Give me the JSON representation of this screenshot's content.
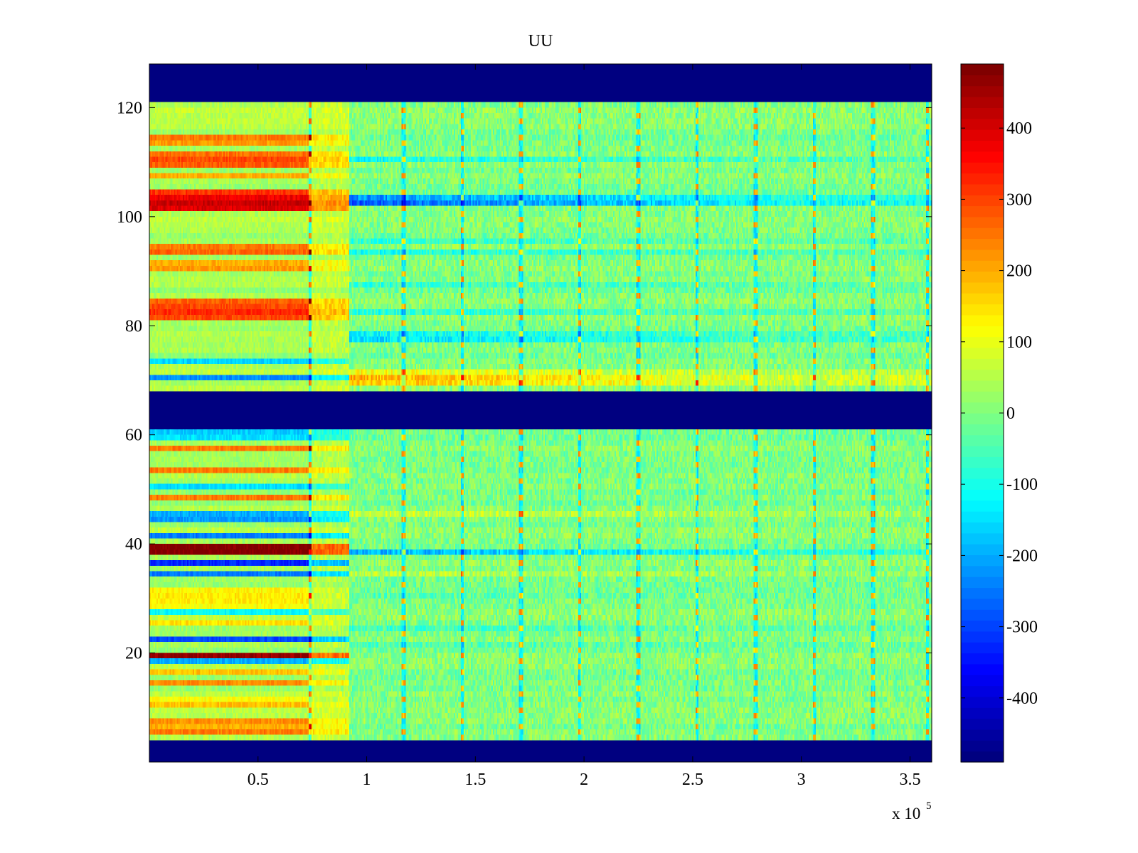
{
  "chart_data": {
    "type": "heatmap",
    "title": "UU",
    "xlabel": "",
    "ylabel": "",
    "x_range": [
      0,
      360000
    ],
    "y_range": [
      0,
      128
    ],
    "x_ticks": [
      0.5,
      1,
      1.5,
      2,
      2.5,
      3,
      3.5
    ],
    "x_tick_labels": [
      "0.5",
      "1",
      "1.5",
      "2",
      "2.5",
      "3",
      "3.5"
    ],
    "x_exponent_label": "x 10",
    "x_exponent": "5",
    "y_ticks": [
      20,
      40,
      60,
      80,
      100,
      120
    ],
    "y_tick_labels": [
      "20",
      "40",
      "60",
      "80",
      "100",
      "120"
    ],
    "colormap": "jet",
    "colorbar": {
      "range": [
        -490,
        490
      ],
      "ticks": [
        400,
        300,
        200,
        100,
        0,
        -100,
        -200,
        -300,
        -400
      ],
      "tick_labels": [
        "400",
        "300",
        "200",
        "100",
        "0",
        "-100",
        "-200",
        "-300",
        "-400"
      ]
    },
    "empty_bands_rows": [
      [
        0,
        4
      ],
      [
        61,
        68
      ],
      [
        121,
        128
      ]
    ],
    "segments_x": [
      0,
      75000,
      92000,
      360000
    ],
    "early_rows": [
      {
        "row": 5,
        "value": 250
      },
      {
        "row": 6,
        "value": 200
      },
      {
        "row": 7,
        "value": 230
      },
      {
        "row": 10,
        "value": 180
      },
      {
        "row": 11,
        "value": 120
      },
      {
        "row": 14,
        "value": 230
      },
      {
        "row": 16,
        "value": 180
      },
      {
        "row": 18,
        "value": -200
      },
      {
        "row": 19,
        "value": 470
      },
      {
        "row": 22,
        "value": -300
      },
      {
        "row": 25,
        "value": 150
      },
      {
        "row": 27,
        "value": -120
      },
      {
        "row": 28,
        "value": 120
      },
      {
        "row": 29,
        "value": 140
      },
      {
        "row": 30,
        "value": 140
      },
      {
        "row": 31,
        "value": 130
      },
      {
        "row": 34,
        "value": -250
      },
      {
        "row": 36,
        "value": -330
      },
      {
        "row": 38,
        "value": 490
      },
      {
        "row": 39,
        "value": 490
      },
      {
        "row": 41,
        "value": -250
      },
      {
        "row": 44,
        "value": -220
      },
      {
        "row": 45,
        "value": -200
      },
      {
        "row": 48,
        "value": 250
      },
      {
        "row": 50,
        "value": -150
      },
      {
        "row": 53,
        "value": 250
      },
      {
        "row": 57,
        "value": 250
      },
      {
        "row": 59,
        "value": -150
      },
      {
        "row": 60,
        "value": -170
      },
      {
        "row": 70,
        "value": -230
      },
      {
        "row": 73,
        "value": -160
      },
      {
        "row": 81,
        "value": 300
      },
      {
        "row": 82,
        "value": 330
      },
      {
        "row": 83,
        "value": 300
      },
      {
        "row": 84,
        "value": 280
      },
      {
        "row": 90,
        "value": 220
      },
      {
        "row": 91,
        "value": 200
      },
      {
        "row": 93,
        "value": 270
      },
      {
        "row": 94,
        "value": 250
      },
      {
        "row": 101,
        "value": 400
      },
      {
        "row": 102,
        "value": 420
      },
      {
        "row": 103,
        "value": 380
      },
      {
        "row": 104,
        "value": 320
      },
      {
        "row": 107,
        "value": 200
      },
      {
        "row": 109,
        "value": 280
      },
      {
        "row": 110,
        "value": 300
      },
      {
        "row": 111,
        "value": 260
      },
      {
        "row": 113,
        "value": 220
      },
      {
        "row": 114,
        "value": 250
      }
    ],
    "late_rows": [
      {
        "row": 38,
        "value": -200
      },
      {
        "row": 34,
        "value": 60
      },
      {
        "row": 21,
        "value": -50
      },
      {
        "row": 24,
        "value": -60
      },
      {
        "row": 69,
        "value": 180
      },
      {
        "row": 70,
        "value": 200
      },
      {
        "row": 71,
        "value": 120
      },
      {
        "row": 77,
        "value": -150
      },
      {
        "row": 78,
        "value": -130
      },
      {
        "row": 82,
        "value": -90
      },
      {
        "row": 87,
        "value": -80
      },
      {
        "row": 93,
        "value": -100
      },
      {
        "row": 95,
        "value": -80
      },
      {
        "row": 102,
        "value": -280
      },
      {
        "row": 103,
        "value": -230
      },
      {
        "row": 110,
        "value": -110
      },
      {
        "row": 45,
        "value": 80
      },
      {
        "row": 30,
        "value": -40
      }
    ],
    "spike_x": [
      74000,
      117000,
      144000,
      171000,
      198000,
      225000,
      252000,
      279000,
      306000,
      333000,
      358000
    ]
  }
}
